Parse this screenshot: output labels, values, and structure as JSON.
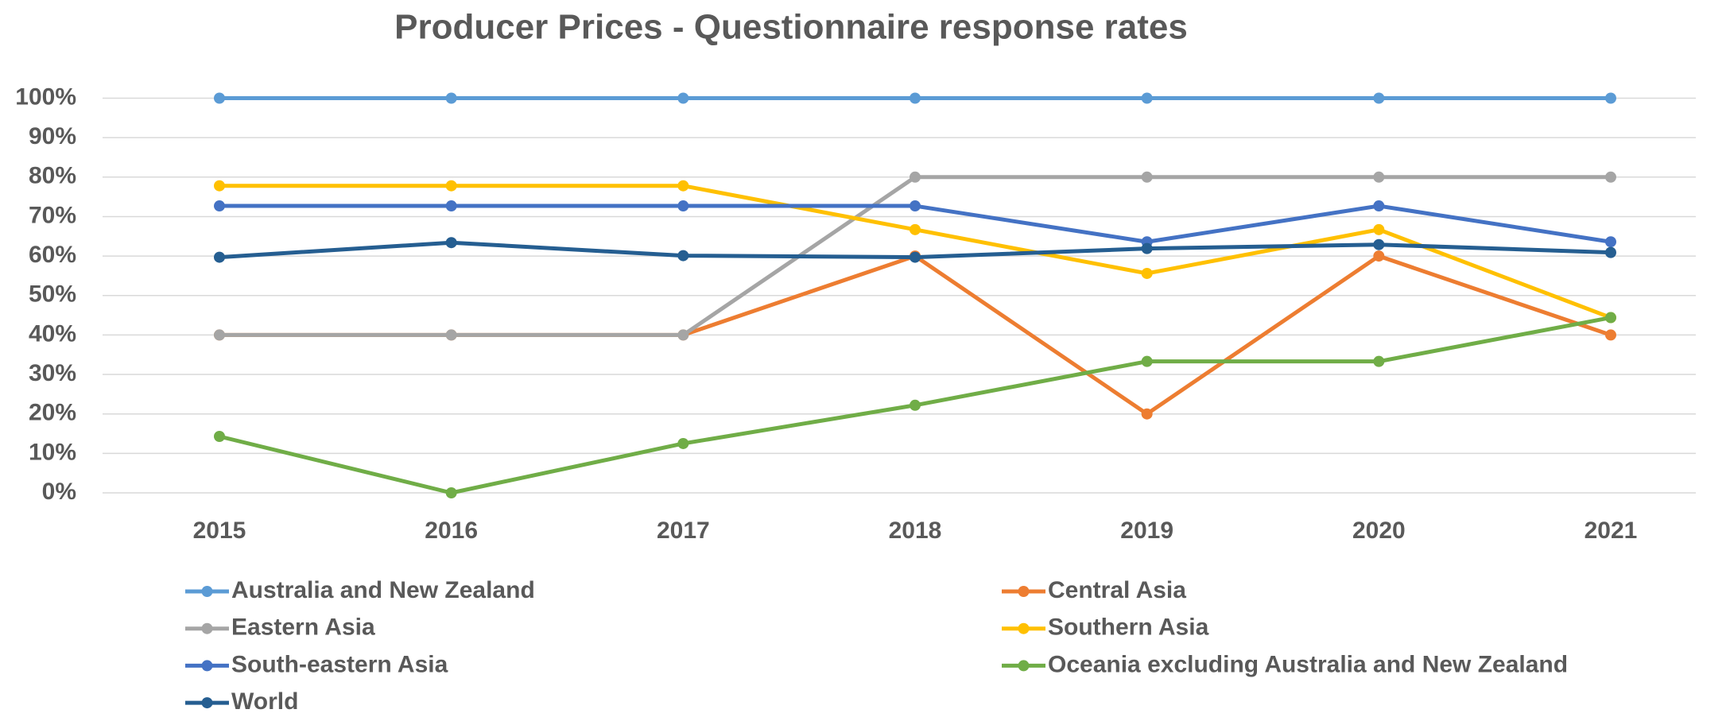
{
  "chart_data": {
    "type": "line",
    "title": "Producer Prices - Questionnaire response rates",
    "categories": [
      "2015",
      "2016",
      "2017",
      "2018",
      "2019",
      "2020",
      "2021"
    ],
    "series": [
      {
        "name": "Australia and New Zealand",
        "color": "#5b9bd5",
        "values": [
          100,
          100,
          100,
          100,
          100,
          100,
          100
        ]
      },
      {
        "name": "Central Asia",
        "color": "#ed7d31",
        "values": [
          40,
          40,
          40,
          60,
          20,
          60,
          40
        ]
      },
      {
        "name": "Eastern Asia",
        "color": "#a5a5a5",
        "values": [
          40,
          40,
          40,
          80,
          80,
          80,
          80
        ]
      },
      {
        "name": "Southern Asia",
        "color": "#ffc000",
        "values": [
          77.8,
          77.8,
          77.8,
          66.7,
          55.6,
          66.7,
          44.4
        ]
      },
      {
        "name": "South-eastern Asia",
        "color": "#4472c4",
        "values": [
          72.7,
          72.7,
          72.7,
          72.7,
          63.6,
          72.7,
          63.6
        ]
      },
      {
        "name": "Oceania excluding Australia and New Zealand",
        "color": "#70ad47",
        "values": [
          14.3,
          0,
          12.5,
          22.2,
          33.3,
          33.3,
          44.4
        ]
      },
      {
        "name": "World",
        "color": "#255e91",
        "values": [
          59.7,
          63.4,
          60.1,
          59.7,
          61.9,
          62.9,
          60.9
        ]
      }
    ],
    "ylim": [
      0,
      100
    ],
    "yticks": [
      {
        "value": 0,
        "label": "0%"
      },
      {
        "value": 10,
        "label": "10%"
      },
      {
        "value": 20,
        "label": "20%"
      },
      {
        "value": 30,
        "label": "30%"
      },
      {
        "value": 40,
        "label": "40%"
      },
      {
        "value": 50,
        "label": "50%"
      },
      {
        "value": 60,
        "label": "60%"
      },
      {
        "value": 70,
        "label": "70%"
      },
      {
        "value": 80,
        "label": "80%"
      },
      {
        "value": 90,
        "label": "90%"
      },
      {
        "value": 100,
        "label": "100%"
      }
    ],
    "grid": true,
    "legend": "bottom"
  }
}
